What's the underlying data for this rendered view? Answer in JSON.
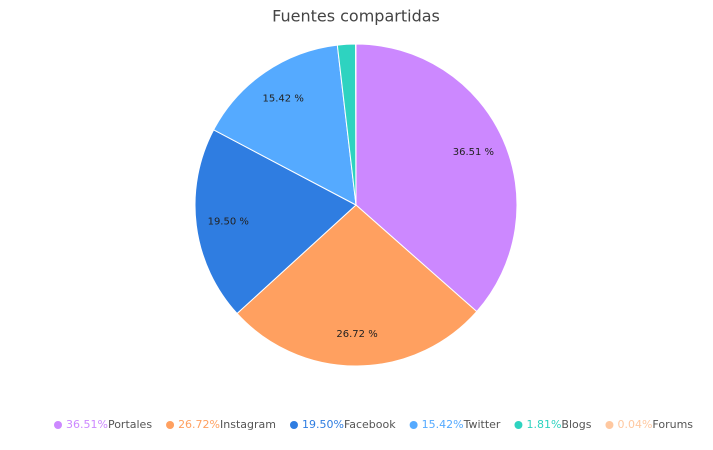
{
  "chart_data": {
    "type": "pie",
    "title": "Fuentes compartidas",
    "categories": [
      "Portales",
      "Instagram",
      "Facebook",
      "Twitter",
      "Blogs",
      "Forums"
    ],
    "values": [
      36.51,
      26.72,
      19.5,
      15.42,
      1.81,
      0.04
    ],
    "value_labels": [
      "36.51 %",
      "26.72 %",
      "19.50 %",
      "15.42 %",
      null,
      null
    ],
    "legend_labels": [
      "36.51%",
      "26.72%",
      "19.50%",
      "15.42%",
      "1.81%",
      "0.04%"
    ],
    "colors": [
      "#cc88ff",
      "#ffa060",
      "#2f7de1",
      "#55aaff",
      "#2ed3c0",
      "#ffc8a0"
    ],
    "legend": "bottom"
  }
}
